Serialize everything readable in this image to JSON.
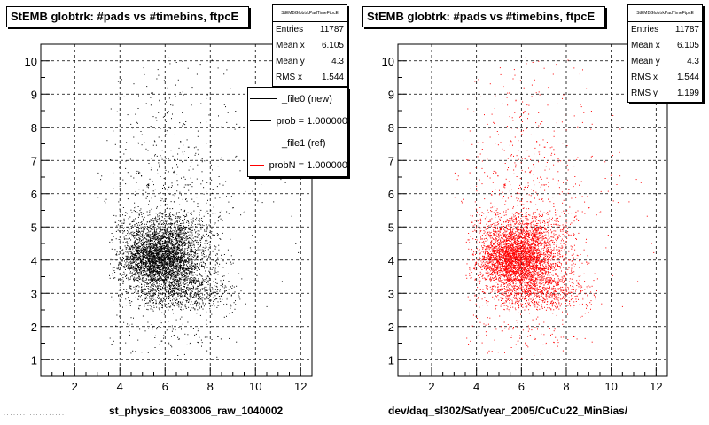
{
  "chart_data": [
    {
      "type": "scatter",
      "title": "StEMB globtrk: #pads vs #timebins, ftpcE",
      "xlabel": "st_physics_6083006_raw_1040002",
      "ylabel": "",
      "xlim": [
        0.5,
        12.5
      ],
      "ylim": [
        0.5,
        10.5
      ],
      "xticks": [
        "2",
        "4",
        "6",
        "8",
        "10",
        "12"
      ],
      "yticks": [
        "1",
        "2",
        "3",
        "4",
        "5",
        "6",
        "7",
        "8",
        "9",
        "10"
      ],
      "grid": true,
      "marker_color": "#000000",
      "stats": {
        "name": "StEMBGlobtrkPadTimeFtpcE",
        "entries_label": "Entries",
        "entries": "11787",
        "mean_x_label": "Mean x",
        "mean_x": "6.105",
        "mean_y_label": "Mean y",
        "mean_y": "4.3",
        "rms_x_label": "RMS x",
        "rms_x": "1.544"
      },
      "legend": [
        {
          "label": "_file0 (new)",
          "color": "#000000"
        },
        {
          "label": "prob = 1.000000",
          "color": "#000000"
        },
        {
          "label": "_file1 (ref)",
          "color": "#ff0000"
        },
        {
          "label": "probN = 1.000000",
          "color": "#ff0000"
        }
      ],
      "density": {
        "description": "2D occupancy, main blob x 3.5-8.5, y 2.5-5.5; densest x 4.5-7, y 3.5-4.5; sparse tail up to y 10",
        "mean_x": 6.105,
        "mean_y": 4.3,
        "rms_x": 1.544,
        "rms_y": 1.199,
        "entries": 11787
      }
    },
    {
      "type": "scatter",
      "title": "StEMB globtrk: #pads vs #timebins, ftpcE",
      "xlabel": "dev/daq_sl302/Sat/year_2005/CuCu22_MinBias/",
      "ylabel": "",
      "xlim": [
        0.5,
        12.5
      ],
      "ylim": [
        0.5,
        10.5
      ],
      "xticks": [
        "2",
        "4",
        "6",
        "8",
        "10",
        "12"
      ],
      "yticks": [
        "1",
        "2",
        "3",
        "4",
        "5",
        "6",
        "7",
        "8",
        "9",
        "10"
      ],
      "grid": true,
      "marker_color": "#ff0000",
      "stats": {
        "name": "StEMBGlobtrkPadTimeFtpcE",
        "entries_label": "Entries",
        "entries": "11787",
        "mean_x_label": "Mean x",
        "mean_x": "6.105",
        "mean_y_label": "Mean y",
        "mean_y": "4.3",
        "rms_x_label": "RMS x",
        "rms_x": "1.544",
        "rms_y_label": "RMS y",
        "rms_y": "1.199"
      },
      "density": {
        "description": "same distribution as left panel, drawn in red",
        "mean_x": 6.105,
        "mean_y": 4.3,
        "rms_x": 1.544,
        "rms_y": 1.199,
        "entries": 11787
      }
    }
  ]
}
